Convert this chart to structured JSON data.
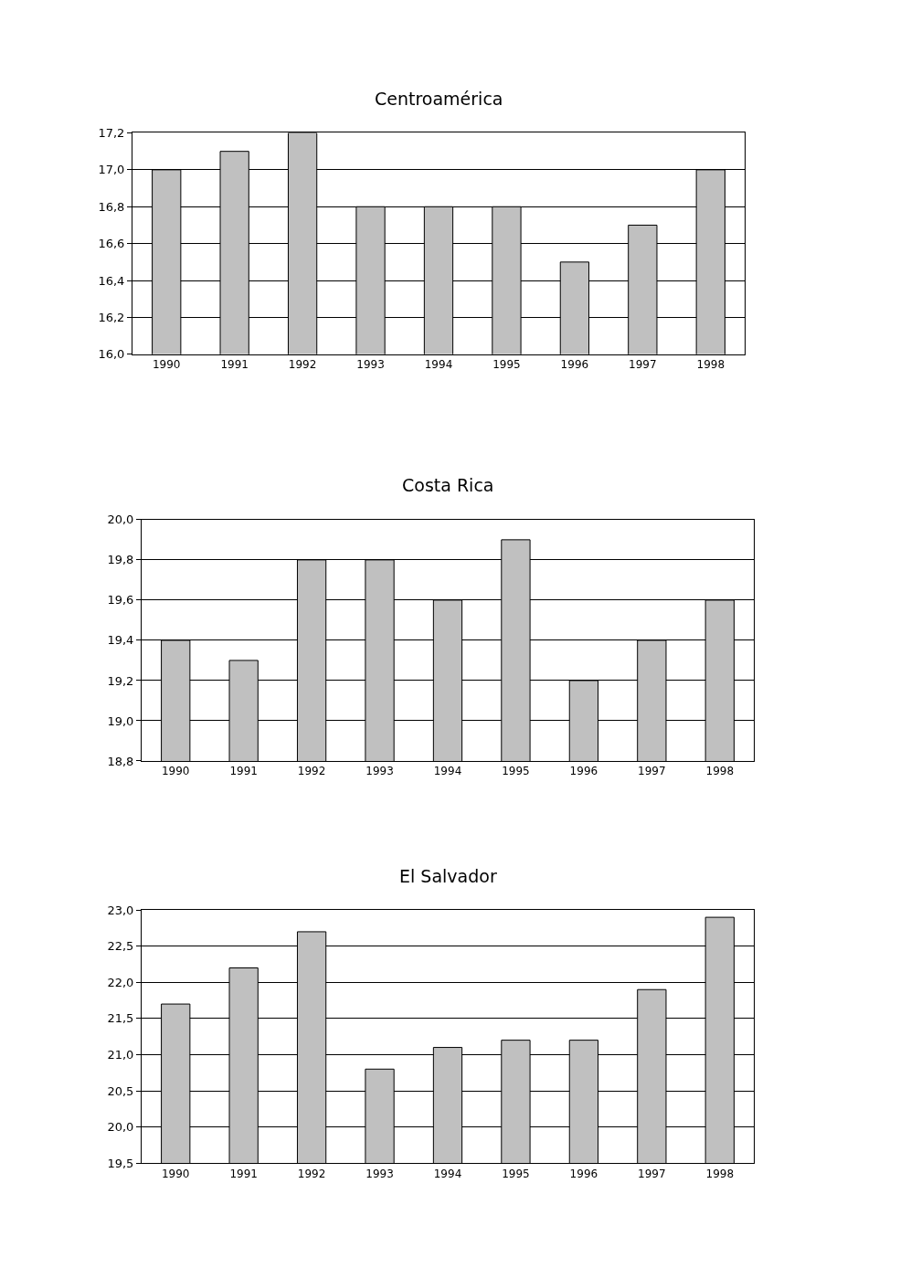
{
  "chart_data": [
    {
      "type": "bar",
      "title": "Centroamérica",
      "categories": [
        "1990",
        "1991",
        "1992",
        "1993",
        "1994",
        "1995",
        "1996",
        "1997",
        "1998"
      ],
      "values": [
        17.0,
        17.1,
        17.2,
        16.8,
        16.8,
        16.8,
        16.5,
        16.7,
        17.0
      ],
      "color": "#c0c0c0",
      "ylim": [
        16.0,
        17.2
      ],
      "yticks": [
        {
          "value": 16.0,
          "label": "16,0"
        },
        {
          "value": 16.2,
          "label": "16,2"
        },
        {
          "value": 16.4,
          "label": "16,4"
        },
        {
          "value": 16.6,
          "label": "16,6"
        },
        {
          "value": 16.8,
          "label": "16,8"
        },
        {
          "value": 17.0,
          "label": "17,0"
        },
        {
          "value": 17.2,
          "label": "17,2"
        }
      ],
      "grid": "y"
    },
    {
      "type": "bar",
      "title": "Costa Rica",
      "categories": [
        "1990",
        "1991",
        "1992",
        "1993",
        "1994",
        "1995",
        "1996",
        "1997",
        "1998"
      ],
      "values": [
        19.4,
        19.3,
        19.8,
        19.8,
        19.6,
        19.9,
        19.2,
        19.4,
        19.6
      ],
      "color": "#c0c0c0",
      "ylim": [
        18.8,
        20.0
      ],
      "yticks": [
        {
          "value": 18.8,
          "label": "18,8"
        },
        {
          "value": 19.0,
          "label": "19,0"
        },
        {
          "value": 19.2,
          "label": "19,2"
        },
        {
          "value": 19.4,
          "label": "19,4"
        },
        {
          "value": 19.6,
          "label": "19,6"
        },
        {
          "value": 19.8,
          "label": "19,8"
        },
        {
          "value": 20.0,
          "label": "20,0"
        }
      ],
      "grid": "y"
    },
    {
      "type": "bar",
      "title": "El Salvador",
      "categories": [
        "1990",
        "1991",
        "1992",
        "1993",
        "1994",
        "1995",
        "1996",
        "1997",
        "1998"
      ],
      "values": [
        21.7,
        22.2,
        22.7,
        20.8,
        21.1,
        21.2,
        21.2,
        21.9,
        22.9
      ],
      "color": "#c0c0c0",
      "ylim": [
        19.5,
        23.0
      ],
      "yticks": [
        {
          "value": 19.5,
          "label": "19,5"
        },
        {
          "value": 20.0,
          "label": "20,0"
        },
        {
          "value": 20.5,
          "label": "20,5"
        },
        {
          "value": 21.0,
          "label": "21,0"
        },
        {
          "value": 21.5,
          "label": "21,5"
        },
        {
          "value": 22.0,
          "label": "22,0"
        },
        {
          "value": 22.5,
          "label": "22,5"
        },
        {
          "value": 23.0,
          "label": "23,0"
        }
      ],
      "grid": "y"
    }
  ]
}
